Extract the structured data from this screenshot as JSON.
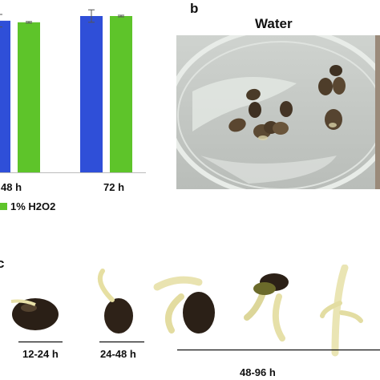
{
  "panel_a": {
    "chart_data": {
      "type": "bar",
      "categories": [
        "48 h",
        "72 h"
      ],
      "series": [
        {
          "name": "",
          "color": "#2f4fd8",
          "values": [
            97,
            100
          ]
        },
        {
          "name": "1% H2O2",
          "color": "#5ec42a",
          "values": [
            96,
            100
          ]
        }
      ],
      "error_bars": [
        [
          4,
          0.5
        ],
        [
          4,
          0.5
        ]
      ],
      "ylim": [
        0,
        100
      ],
      "xlabel": "",
      "ylabel": "",
      "legend_position": "bottom"
    }
  },
  "panel_b": {
    "letter": "b",
    "title": "Water"
  },
  "panel_c": {
    "letter": "c",
    "stages": [
      {
        "label": "12-24 h"
      },
      {
        "label": "24-48 h"
      },
      {
        "label": "48-96 h"
      }
    ]
  }
}
